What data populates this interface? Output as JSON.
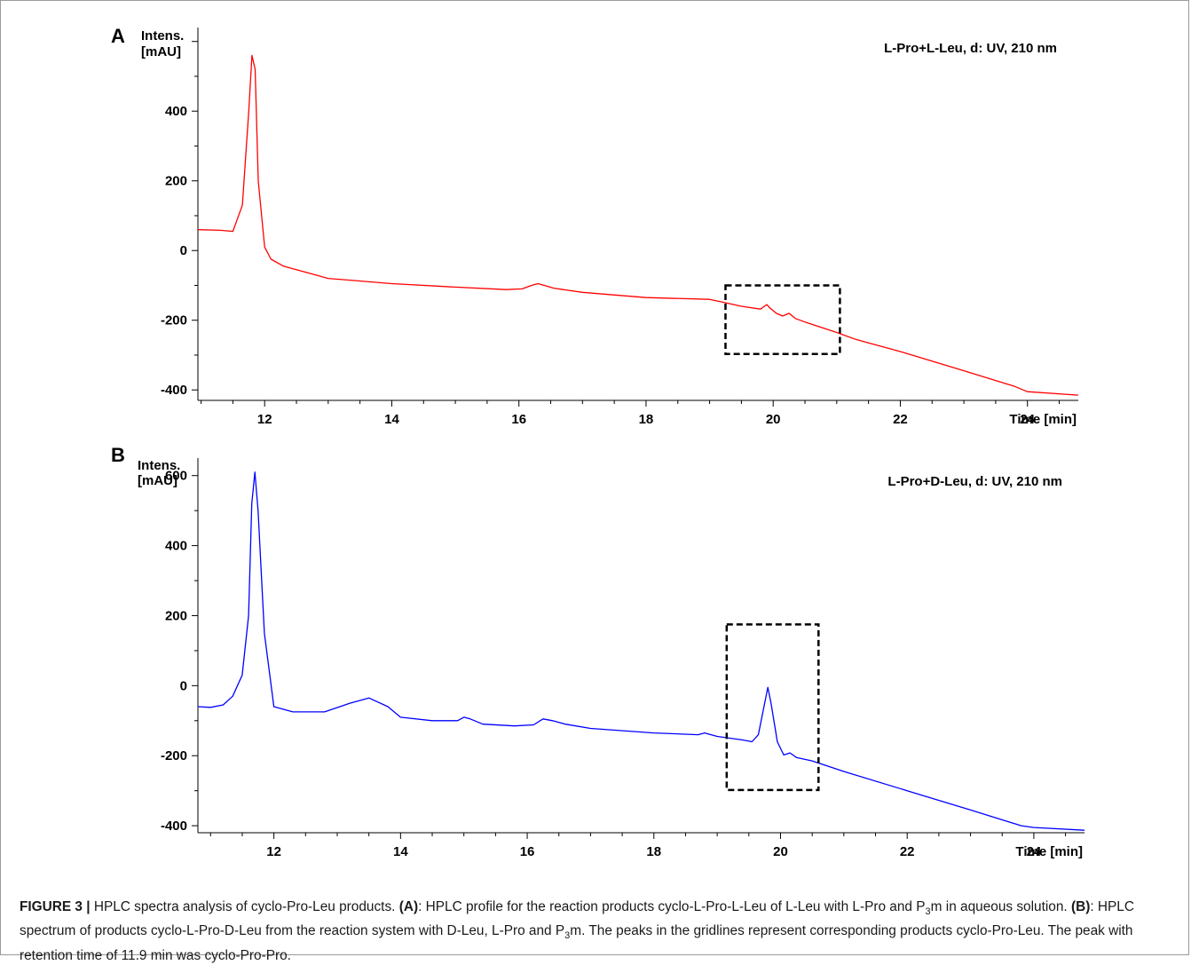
{
  "chart_data": [
    {
      "type": "line",
      "panel_label": "A",
      "ylabel_line1": "Intens.",
      "ylabel_line2": "[mAU]",
      "xlabel": "Time [min]",
      "annotation": "L-Pro+L-Leu, d: UV, 210 nm",
      "line_color": "#ff0000",
      "xlim": [
        10.95,
        24.8
      ],
      "ylim": [
        -430,
        640
      ],
      "xticks": [
        12,
        14,
        16,
        18,
        20,
        22,
        24
      ],
      "yticks": [
        -400,
        -200,
        0,
        200,
        400
      ],
      "highlight_box": {
        "x": [
          19.25,
          21.05
        ],
        "y": [
          -297,
          -100
        ]
      },
      "series": [
        {
          "x": [
            10.95,
            11.3,
            11.5,
            11.65,
            11.75,
            11.8,
            11.85,
            11.9,
            12.0,
            12.1,
            12.3,
            12.6,
            13.0,
            14.0,
            15.0,
            15.8,
            16.05,
            16.2,
            16.3,
            16.4,
            16.55,
            16.7,
            17.0,
            18.0,
            19.0,
            19.2,
            19.5,
            19.8,
            19.9,
            19.95,
            20.05,
            20.15,
            20.25,
            20.35,
            20.5,
            21.0,
            21.3,
            21.5,
            22.0,
            23.0,
            23.8,
            24.0,
            24.8
          ],
          "y": [
            60,
            58,
            55,
            130,
            400,
            560,
            520,
            200,
            10,
            -25,
            -45,
            -60,
            -80,
            -95,
            -105,
            -112,
            -110,
            -100,
            -95,
            -100,
            -108,
            -112,
            -120,
            -135,
            -140,
            -148,
            -160,
            -168,
            -155,
            -165,
            -180,
            -188,
            -180,
            -195,
            -205,
            -235,
            -255,
            -265,
            -290,
            -345,
            -390,
            -405,
            -415
          ]
        }
      ]
    },
    {
      "type": "line",
      "panel_label": "B",
      "ylabel_line1": "Intens.",
      "ylabel_line2": "[mAU]",
      "xlabel": "Time [min]",
      "annotation": "L-Pro+D-Leu, d: UV, 210 nm",
      "line_color": "#0000ff",
      "xlim": [
        10.8,
        24.8
      ],
      "ylim": [
        -420,
        650
      ],
      "xticks": [
        12,
        14,
        16,
        18,
        20,
        22,
        24
      ],
      "yticks": [
        -400,
        -200,
        0,
        200,
        400,
        600
      ],
      "highlight_box": {
        "x": [
          19.15,
          20.6
        ],
        "y": [
          -298,
          175
        ]
      },
      "series": [
        {
          "x": [
            10.8,
            11.0,
            11.2,
            11.35,
            11.5,
            11.6,
            11.65,
            11.7,
            11.75,
            11.85,
            12.0,
            12.3,
            12.8,
            13.2,
            13.5,
            13.8,
            14.0,
            14.5,
            14.9,
            15.0,
            15.1,
            15.3,
            15.8,
            16.1,
            16.25,
            16.4,
            16.6,
            17.0,
            18.0,
            18.7,
            18.8,
            19.0,
            19.4,
            19.55,
            19.65,
            19.75,
            19.8,
            19.85,
            19.95,
            20.05,
            20.15,
            20.25,
            20.5,
            21.0,
            22.0,
            23.0,
            23.8,
            24.0,
            24.8
          ],
          "y": [
            -60,
            -62,
            -55,
            -30,
            30,
            200,
            520,
            610,
            500,
            150,
            -60,
            -75,
            -75,
            -50,
            -35,
            -60,
            -90,
            -100,
            -100,
            -90,
            -95,
            -110,
            -115,
            -112,
            -95,
            -100,
            -110,
            -122,
            -135,
            -140,
            -135,
            -145,
            -155,
            -160,
            -140,
            -50,
            -5,
            -50,
            -160,
            -198,
            -192,
            -205,
            -215,
            -245,
            -300,
            -355,
            -400,
            -405,
            -413
          ]
        }
      ]
    }
  ],
  "caption": {
    "fig_label": "FIGURE 3 |",
    "s1": " HPLC spectra analysis of cyclo-Pro-Leu products. ",
    "s2": "(A)",
    "s3": ": HPLC profile for the reaction products cyclo-L-Pro-L-Leu of L-Leu with L-Pro and P",
    "s4": "3",
    "s5": "m in aqueous solution. ",
    "s6": "(B)",
    "s7": ": HPLC spectrum of products cyclo-L-Pro-D-Leu from the reaction system with D-Leu, L-Pro and P",
    "s8": "3",
    "s9": "m. The peaks in the gridlines represent corresponding products cyclo-Pro-Leu. The peak with retention time of 11.9 min was cyclo-Pro-Pro."
  }
}
